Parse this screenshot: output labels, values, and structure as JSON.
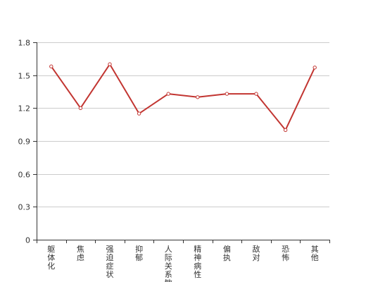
{
  "chart_data": {
    "type": "line",
    "categories": [
      "躯体化",
      "焦虑",
      "强迫症状",
      "抑郁",
      "人际关系敏感",
      "精神病性",
      "偏执",
      "敌对",
      "恐怖",
      "其他"
    ],
    "series": [
      {
        "values": [
          1.58,
          1.2,
          1.6,
          1.15,
          1.33,
          1.3,
          1.33,
          1.33,
          1.0,
          1.57
        ]
      }
    ],
    "ylim": [
      0,
      1.8
    ],
    "yticks": [
      "0",
      "0.3",
      "0.6",
      "0.9",
      "1.2",
      "1.5",
      "1.8"
    ],
    "grid": true,
    "colors": {
      "line": "#c23531",
      "grid": "#cccccc",
      "axis": "#333333"
    }
  }
}
